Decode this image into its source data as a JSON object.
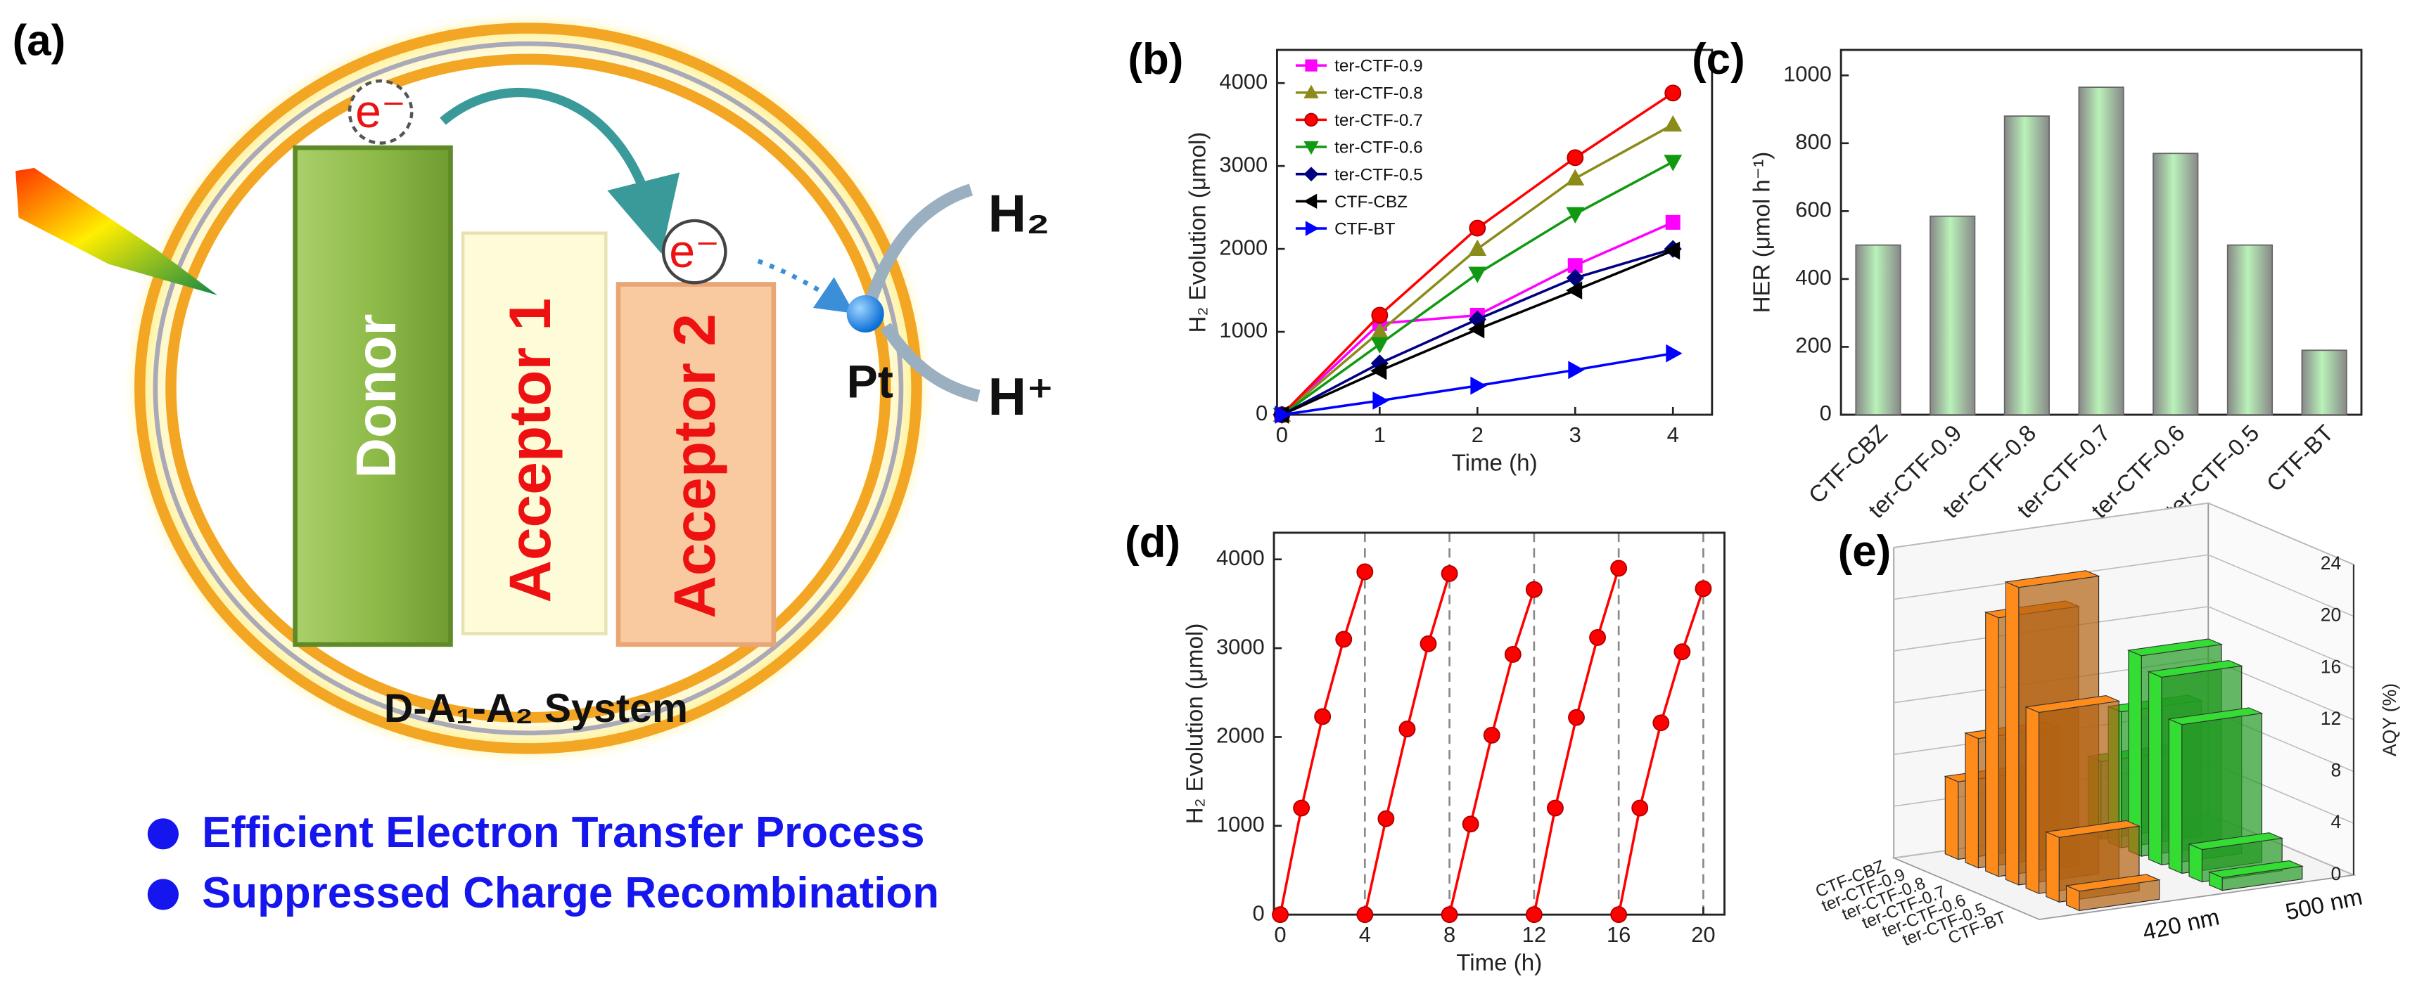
{
  "diagram": {
    "panel_label": "(a)",
    "donor": "Donor",
    "acceptor1": "Acceptor 1",
    "acceptor2": "Acceptor 2",
    "electron1": "e⁻",
    "electron2": "e⁻",
    "pt": "Pt",
    "h2": "H₂",
    "hplus": "H⁺",
    "system": "D-A₁-A₂ System",
    "bullets": [
      "Efficient Electron Transfer Process",
      "Suppressed Charge Recombination"
    ]
  },
  "chart_data": [
    {
      "type": "line",
      "panel_label": "(b)",
      "xlabel": "Time (h)",
      "ylabel": "H₂ Evolution (μmol)",
      "x": [
        0,
        1,
        2,
        3,
        4
      ],
      "xlim": [
        -0.05,
        4.4
      ],
      "xticks": [
        0,
        1,
        2,
        3,
        4
      ],
      "ylim": [
        0,
        4400
      ],
      "yticks": [
        0,
        1000,
        2000,
        3000,
        4000
      ],
      "legend": "upper left",
      "series": [
        {
          "name": "ter-CTF-0.9",
          "color": "#ff00ff",
          "marker": "square",
          "values": [
            0,
            1100,
            1200,
            1800,
            2320
          ]
        },
        {
          "name": "ter-CTF-0.8",
          "color": "#8b8b1a",
          "marker": "triangle-up",
          "values": [
            0,
            1000,
            2000,
            2850,
            3500
          ]
        },
        {
          "name": "ter-CTF-0.7",
          "color": "#ff0000",
          "marker": "circle",
          "values": [
            0,
            1200,
            2250,
            3100,
            3880
          ]
        },
        {
          "name": "ter-CTF-0.6",
          "color": "#119911",
          "marker": "triangle-down",
          "values": [
            0,
            850,
            1700,
            2420,
            3050
          ]
        },
        {
          "name": "ter-CTF-0.5",
          "color": "#000080",
          "marker": "diamond",
          "values": [
            0,
            620,
            1150,
            1650,
            2000
          ]
        },
        {
          "name": "CTF-CBZ",
          "color": "#000000",
          "marker": "triangle-left",
          "values": [
            0,
            530,
            1030,
            1500,
            1980
          ]
        },
        {
          "name": "CTF-BT",
          "color": "#0000ff",
          "marker": "triangle-right",
          "values": [
            0,
            170,
            350,
            540,
            740
          ]
        }
      ]
    },
    {
      "type": "bar",
      "panel_label": "(c)",
      "ylabel": "HER (μmol h⁻¹)",
      "categories": [
        "CTF-CBZ",
        "ter-CTF-0.9",
        "ter-CTF-0.8",
        "ter-CTF-0.7",
        "ter-CTF-0.6",
        "ter-CTF-0.5",
        "CTF-BT"
      ],
      "values": [
        500,
        585,
        880,
        965,
        770,
        500,
        190
      ],
      "color": "#b9f2b9",
      "ylim": [
        0,
        1075
      ],
      "yticks": [
        0,
        200,
        400,
        600,
        800,
        1000
      ]
    },
    {
      "type": "line",
      "panel_label": "(d)",
      "xlabel": "Time (h)",
      "ylabel": "H₂ Evolution (μmol)",
      "color": "#ff0000",
      "marker": "circle",
      "xlim": [
        -0.3,
        21
      ],
      "xticks": [
        0,
        4,
        8,
        12,
        16,
        20
      ],
      "ylim": [
        0,
        4300
      ],
      "yticks": [
        0,
        1000,
        2000,
        3000,
        4000
      ],
      "vlines": [
        4,
        8,
        12,
        16,
        20
      ],
      "series": [
        {
          "x": [
            0,
            1,
            2,
            3,
            4
          ],
          "values": [
            0,
            1200,
            2230,
            3100,
            3860
          ]
        },
        {
          "x": [
            4,
            5,
            6,
            7,
            8
          ],
          "values": [
            0,
            1080,
            2090,
            3050,
            3840
          ]
        },
        {
          "x": [
            8,
            9,
            10,
            11,
            12
          ],
          "values": [
            0,
            1020,
            2020,
            2930,
            3660
          ]
        },
        {
          "x": [
            12,
            13,
            14,
            15,
            16
          ],
          "values": [
            0,
            1200,
            2220,
            3120,
            3900
          ]
        },
        {
          "x": [
            16,
            17,
            18,
            19,
            20
          ],
          "values": [
            0,
            1200,
            2160,
            2960,
            3670
          ]
        }
      ]
    },
    {
      "type": "bar3d",
      "panel_label": "(e)",
      "zlabel": "AQY (%)",
      "categories": [
        "CTF-CBZ",
        "ter-CTF-0.9",
        "ter-CTF-0.8",
        "ter-CTF-0.7",
        "ter-CTF-0.6",
        "ter-CTF-0.5",
        "CTF-BT"
      ],
      "series": [
        {
          "name": "420 nm",
          "color": "#ff8c1a",
          "values": [
            6,
            10,
            20,
            23,
            14,
            5,
            1.5
          ]
        },
        {
          "name": "500 nm",
          "color": "#33dd33",
          "values": [
            6,
            10.5,
            15.5,
            14.5,
            11.5,
            2.5,
            1
          ]
        }
      ],
      "zlim": [
        0,
        24
      ],
      "zticks": [
        0,
        4,
        8,
        12,
        16,
        20,
        24
      ]
    }
  ]
}
